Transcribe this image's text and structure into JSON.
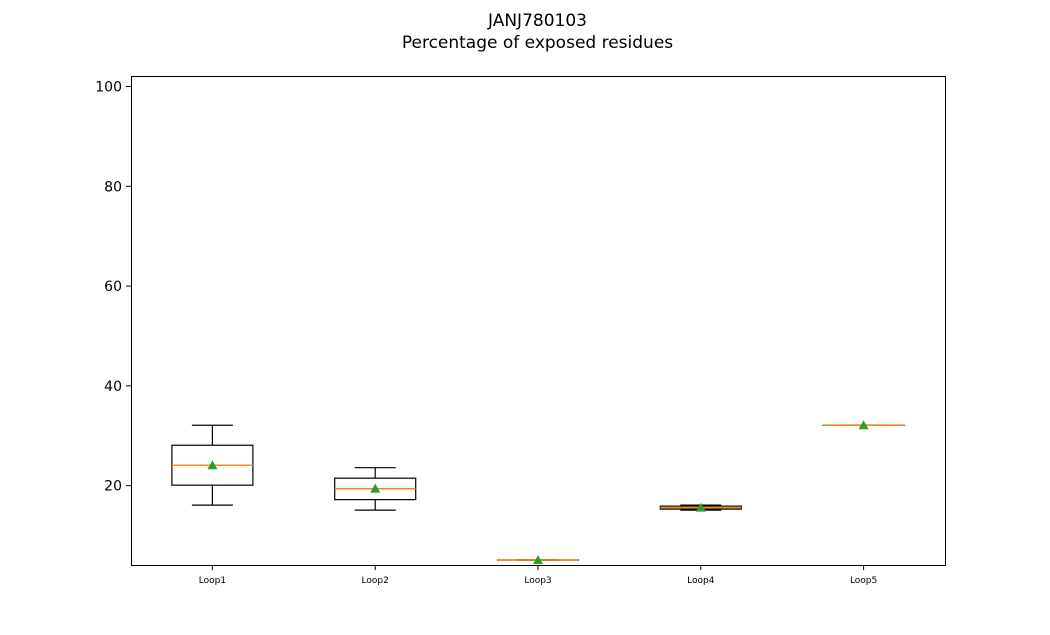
{
  "chart_data": {
    "type": "box",
    "title": "JANJ780103",
    "subtitle": "Percentage of exposed residues",
    "xlabel": "",
    "ylabel": "",
    "ylim": [
      4,
      102
    ],
    "yticks": [
      20,
      40,
      60,
      80,
      100
    ],
    "categories": [
      "Loop1",
      "Loop2",
      "Loop3",
      "Loop4",
      "Loop5"
    ],
    "boxes": [
      {
        "label": "Loop1",
        "whisker_low": 16,
        "q1": 20,
        "median": 24,
        "q3": 28,
        "whisker_high": 32,
        "mean": 24
      },
      {
        "label": "Loop2",
        "whisker_low": 15,
        "q1": 17.1,
        "median": 19.3,
        "q3": 21.4,
        "whisker_high": 23.5,
        "mean": 19.3
      },
      {
        "label": "Loop3",
        "whisker_low": 5,
        "q1": 5,
        "median": 5,
        "q3": 5,
        "whisker_high": 5,
        "mean": 5
      },
      {
        "label": "Loop4",
        "whisker_low": 15,
        "q1": 15.2,
        "median": 15.5,
        "q3": 15.8,
        "whisker_high": 16,
        "mean": 15.5
      },
      {
        "label": "Loop5",
        "whisker_low": 32,
        "q1": 32,
        "median": 32,
        "q3": 32,
        "whisker_high": 32,
        "mean": 32
      }
    ],
    "grid": false,
    "legend": "none",
    "colors": {
      "box": "#000000",
      "median": "#ff7f0e",
      "mean": "#2ca02c"
    }
  }
}
